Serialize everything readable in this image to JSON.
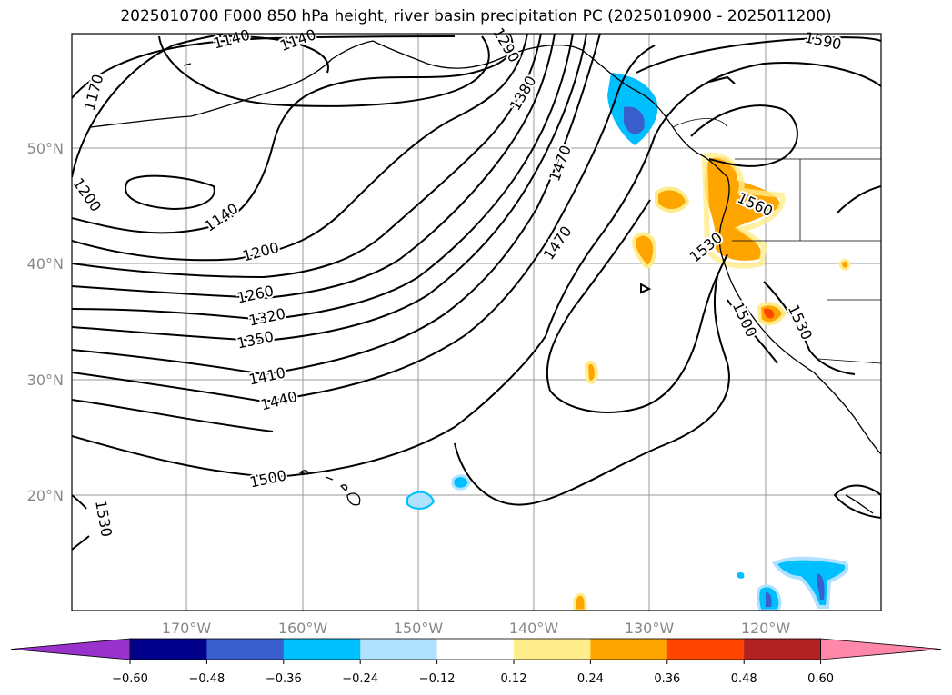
{
  "title": "2025010700 F000 850 hPa height, river basin precipitation PC (2025010900 - 2025011200)",
  "lat_labels": [
    "50°N",
    "40°N",
    "30°N",
    "20°N"
  ],
  "lon_labels": [
    "170°W",
    "160°W",
    "150°W",
    "140°W",
    "130°W",
    "120°W"
  ],
  "contour_labels": [
    "1140",
    "1140",
    "1170",
    "1200",
    "1140",
    "1200",
    "1260",
    "1320",
    "1350",
    "1410",
    "1440",
    "1500",
    "1530",
    "1290",
    "1380",
    "1470",
    "1470",
    "1590",
    "1560",
    "1530",
    "1500",
    "1530"
  ],
  "colorbar": {
    "tick_labels": [
      "−0.60",
      "−0.48",
      "−0.36",
      "−0.24",
      "−0.12",
      "0.12",
      "0.24",
      "0.36",
      "0.48",
      "0.60"
    ],
    "colors": [
      "#9932cc",
      "#00008b",
      "#3a5fcd",
      "#00bfff",
      "#b0e2ff",
      "#ffffff",
      "#ffec8b",
      "#ffa500",
      "#ff4500",
      "#b22222",
      "#ff88aa"
    ]
  }
}
